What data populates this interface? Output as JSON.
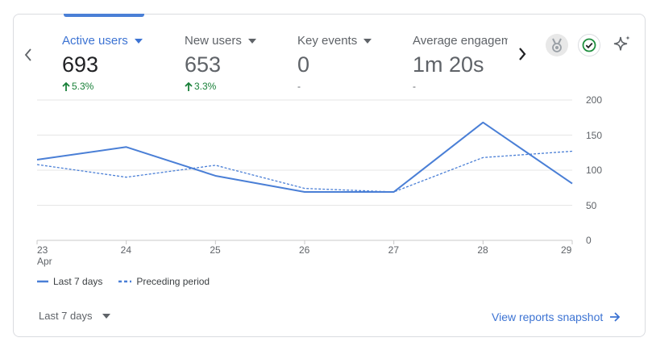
{
  "metrics": [
    {
      "label": "Active users",
      "value": "693",
      "change": "5.3%",
      "trend": "up"
    },
    {
      "label": "New users",
      "value": "653",
      "change": "3.3%",
      "trend": "up"
    },
    {
      "label": "Key events",
      "value": "0",
      "change": "-",
      "trend": "none"
    },
    {
      "label": "Average engagem",
      "value": "1m 20s",
      "change": "-",
      "trend": "none"
    }
  ],
  "icons": {
    "prev": "chevron-left-icon",
    "next": "chevron-right-icon",
    "medal": "medal-icon",
    "check": "check-circle-icon",
    "sparkle": "sparkle-icon",
    "dropdown": "arrow-drop-down-icon",
    "arrow": "arrow-right-icon"
  },
  "chart_data": {
    "type": "line",
    "categories": [
      "23",
      "24",
      "25",
      "26",
      "27",
      "28",
      "29"
    ],
    "x_sub_labels": [
      "Apr",
      "",
      "",
      "",
      "",
      "",
      ""
    ],
    "series": [
      {
        "name": "Last 7 days",
        "values": [
          115,
          133,
          92,
          69,
          69,
          168,
          81
        ],
        "style": "solid",
        "color": "#4a7fd6"
      },
      {
        "name": "Preceding period",
        "values": [
          108,
          90,
          107,
          74,
          69,
          118,
          127
        ],
        "style": "dashed",
        "color": "#4a7fd6"
      }
    ],
    "ylim": [
      0,
      200
    ],
    "yticks": [
      "0",
      "50",
      "100",
      "150",
      "200"
    ],
    "y_axis_side": "right",
    "grid": true
  },
  "footer": {
    "range_label": "Last 7 days",
    "view_link": "View reports snapshot"
  },
  "colors": {
    "accent": "#4a7fd6",
    "positive": "#188038",
    "link": "#3c73d3"
  }
}
